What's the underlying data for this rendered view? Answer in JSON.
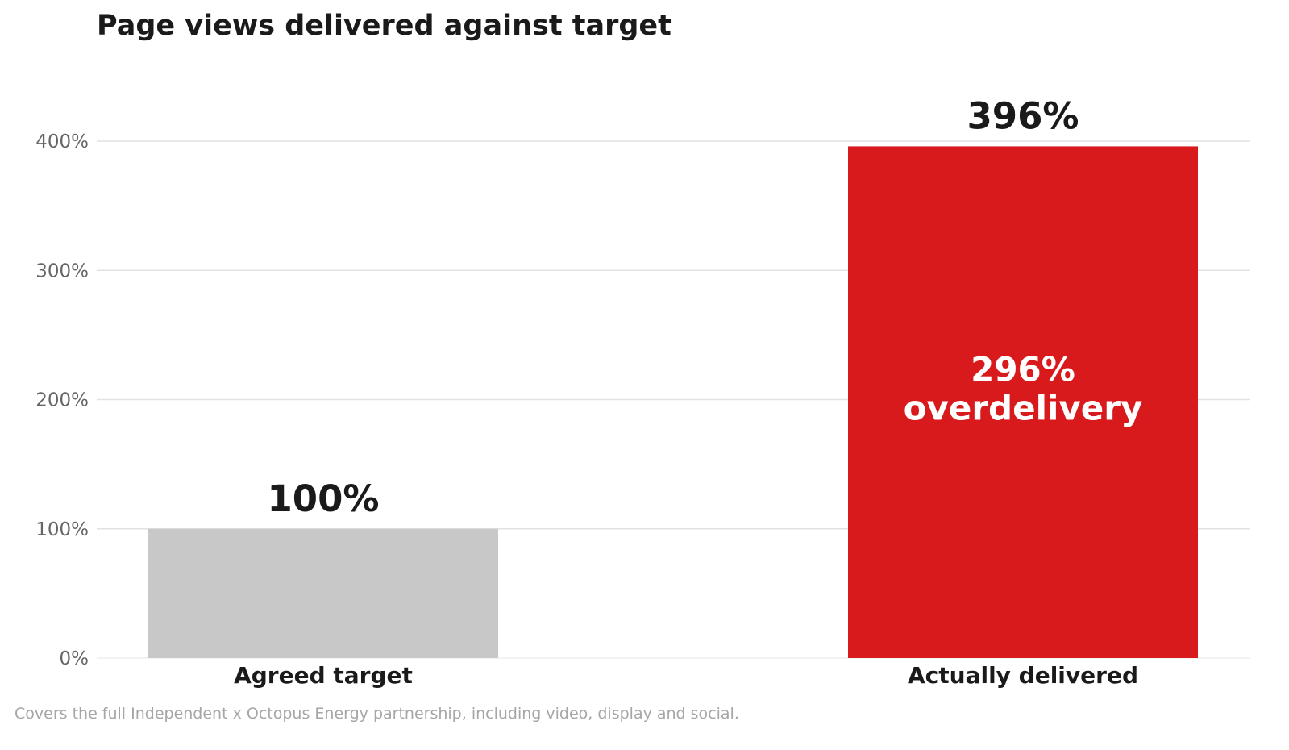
{
  "chart_data": {
    "type": "bar",
    "title": "Page views delivered against target",
    "xlabel": "",
    "ylabel": "",
    "ylim": [
      0,
      400
    ],
    "yticks": [
      0,
      100,
      200,
      300,
      400
    ],
    "ytick_labels": [
      "0%",
      "100%",
      "200%",
      "300%",
      "400%"
    ],
    "grid": true,
    "categories": [
      "Agreed target",
      "Actually delivered"
    ],
    "values": [
      100,
      396
    ],
    "value_labels": [
      "100%",
      "396%"
    ],
    "bar_colors": [
      "#c8c8c8",
      "#d91a1c"
    ],
    "annotation": {
      "category": "Actually delivered",
      "lines": [
        "296%",
        "overdelivery"
      ]
    },
    "footnote": "Covers the full Independent x Octopus Energy partnership, including video, display and social."
  }
}
